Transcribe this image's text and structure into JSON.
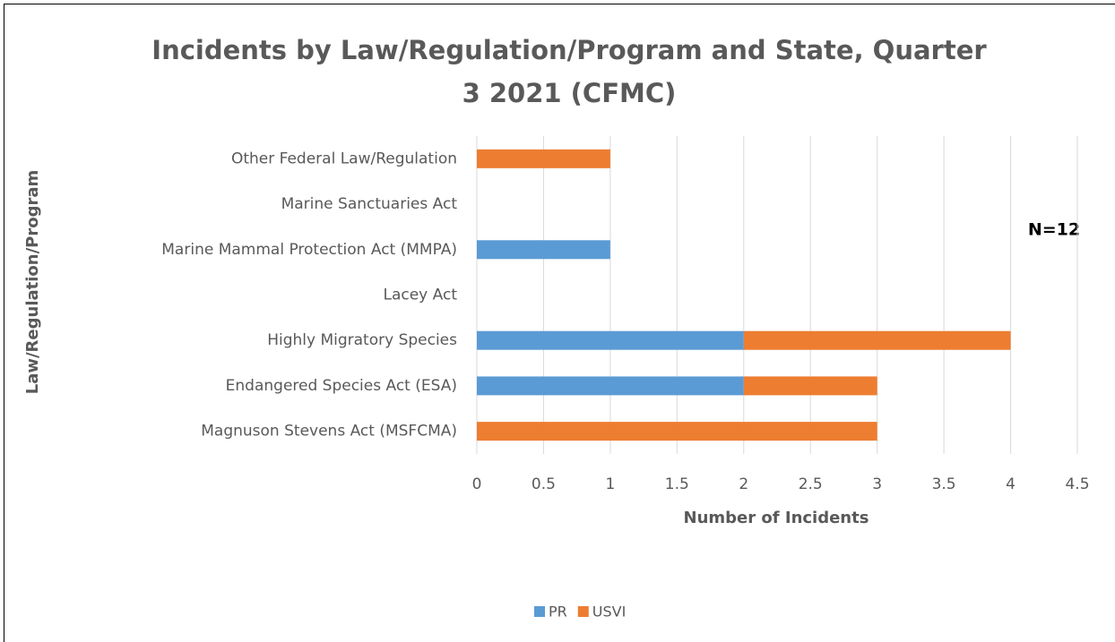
{
  "chart_data": {
    "type": "stacked-barh",
    "title": "Incidents by Law/Regulation/Program and State, Quarter 3 2021 (CFMC)",
    "x_label": "Number of Incidents",
    "y_label": "Law/Regulation/Program",
    "annotation": "N=12",
    "categories": [
      "Other Federal Law/Regulation",
      "Marine Sanctuaries Act",
      "Marine Mammal Protection Act (MMPA)",
      "Lacey Act",
      "Highly Migratory Species",
      "Endangered Species Act (ESA)",
      "Magnuson Stevens Act (MSFCMA)"
    ],
    "series": [
      {
        "name": "PR",
        "color": "#5b9bd5",
        "values": [
          0,
          0,
          1,
          0,
          2,
          2,
          0
        ]
      },
      {
        "name": "USVI",
        "color": "#ed7d31",
        "values": [
          1,
          0,
          0,
          0,
          2,
          1,
          3
        ]
      }
    ],
    "xlim": [
      0,
      4.5
    ],
    "xticks": [
      0,
      0.5,
      1,
      1.5,
      2,
      2.5,
      3,
      3.5,
      4,
      4.5
    ],
    "grid": true,
    "legend": "bottom"
  }
}
